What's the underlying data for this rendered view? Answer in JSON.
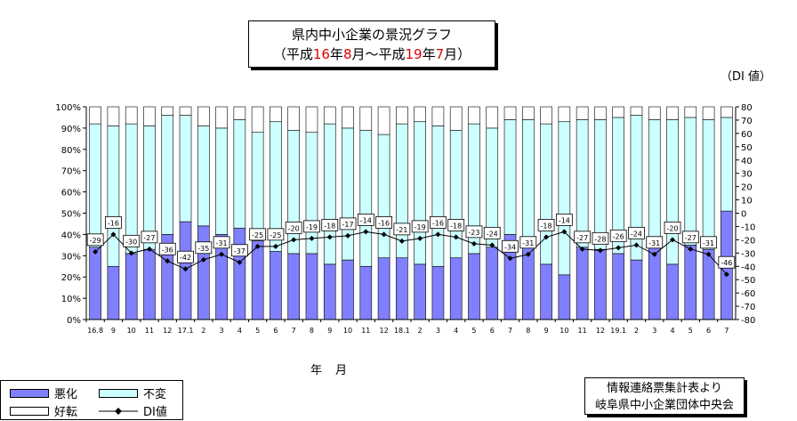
{
  "title": {
    "line1": "県内中小企業の景況グラフ",
    "line2_parts": [
      "（平成",
      "16",
      "年",
      "8",
      "月～平成",
      "19",
      "年",
      "7",
      "月）"
    ]
  },
  "di_unit_label": "（DI 値）",
  "x_unit_label": "年　月",
  "source": {
    "line1": "情報連絡票集計表より",
    "line2": "岐阜県中小企業団体中央会"
  },
  "legend": {
    "worse": "悪化",
    "unchanged": "不変",
    "better": "好転",
    "di": "DI値"
  },
  "colors": {
    "worse": "#8080ff",
    "unchanged": "#ccffff",
    "better": "#ffffff",
    "di_line": "#000000",
    "title_highlight": "#e00000"
  },
  "chart_data": {
    "type": "bar",
    "stacked": true,
    "categories": [
      "16.8",
      "9",
      "10",
      "11",
      "12",
      "17.1",
      "2",
      "3",
      "4",
      "5",
      "6",
      "7",
      "8",
      "9",
      "10",
      "11",
      "12",
      "18.1",
      "2",
      "3",
      "4",
      "5",
      "6",
      "7",
      "8",
      "9",
      "10",
      "11",
      "12",
      "19.1",
      "2",
      "3",
      "4",
      "5",
      "6",
      "7"
    ],
    "series": [
      {
        "name": "悪化",
        "values": [
          34,
          25,
          31,
          33,
          40,
          46,
          44,
          40,
          43,
          37,
          32,
          31,
          31,
          26,
          28,
          25,
          29,
          29,
          26,
          25,
          29,
          31,
          34,
          40,
          38,
          26,
          21,
          34,
          33,
          31,
          28,
          37,
          26,
          35,
          33,
          51
        ]
      },
      {
        "name": "不変",
        "values": [
          58,
          66,
          61,
          58,
          56,
          50,
          47,
          50,
          51,
          51,
          61,
          58,
          57,
          66,
          62,
          64,
          58,
          63,
          67,
          66,
          60,
          61,
          56,
          54,
          56,
          66,
          72,
          60,
          61,
          64,
          68,
          57,
          68,
          60,
          61,
          44
        ]
      },
      {
        "name": "好転",
        "values": [
          8,
          9,
          8,
          9,
          4,
          4,
          9,
          10,
          6,
          12,
          7,
          11,
          12,
          8,
          10,
          11,
          13,
          8,
          7,
          9,
          11,
          8,
          10,
          6,
          6,
          8,
          7,
          6,
          6,
          5,
          4,
          6,
          6,
          5,
          6,
          5
        ]
      }
    ],
    "di": {
      "name": "DI値",
      "values": [
        -29,
        -16,
        -30,
        -27,
        -36,
        -42,
        -35,
        -31,
        -37,
        -25,
        -25,
        -20,
        -19,
        -18,
        -17,
        -14,
        -16,
        -21,
        -19,
        -16,
        -18,
        -23,
        -24,
        -34,
        -31,
        -18,
        -14,
        -27,
        -28,
        -26,
        -24,
        -31,
        -20,
        -27,
        -31,
        -46
      ]
    },
    "y_left": {
      "min": 0,
      "max": 100,
      "step": 10,
      "unit": "%"
    },
    "y_right": {
      "min": -80,
      "max": 80,
      "step": 10
    },
    "grid": false,
    "legend_position": "bottom-left"
  }
}
